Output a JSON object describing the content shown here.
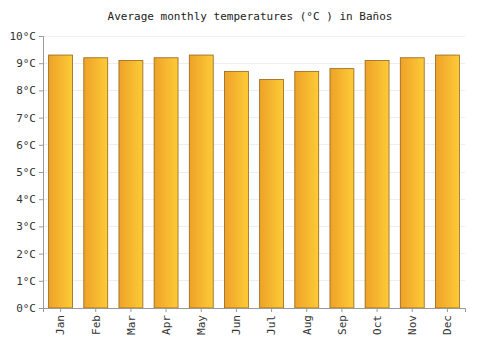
{
  "chart_data": {
    "type": "bar",
    "title": "Average monthly temperatures (°C ) in Baños",
    "categories": [
      "Jan",
      "Feb",
      "Mar",
      "Apr",
      "May",
      "Jun",
      "Jul",
      "Aug",
      "Sep",
      "Oct",
      "Nov",
      "Dec"
    ],
    "values": [
      9.3,
      9.2,
      9.1,
      9.2,
      9.3,
      8.7,
      8.4,
      8.7,
      8.8,
      9.1,
      9.2,
      9.3
    ],
    "color": "#fbab2a",
    "ylim": [
      0,
      10
    ],
    "yticks": [
      {
        "value": 0,
        "label": "0°C"
      },
      {
        "value": 1,
        "label": "1°C"
      },
      {
        "value": 2,
        "label": "2°C"
      },
      {
        "value": 3,
        "label": "3°C"
      },
      {
        "value": 4,
        "label": "4°C"
      },
      {
        "value": 5,
        "label": "5°C"
      },
      {
        "value": 6,
        "label": "6°C"
      },
      {
        "value": 7,
        "label": "7°C"
      },
      {
        "value": 8,
        "label": "8°C"
      },
      {
        "value": 9,
        "label": "9°C"
      },
      {
        "value": 10,
        "label": "10°C"
      }
    ],
    "grid": true
  }
}
